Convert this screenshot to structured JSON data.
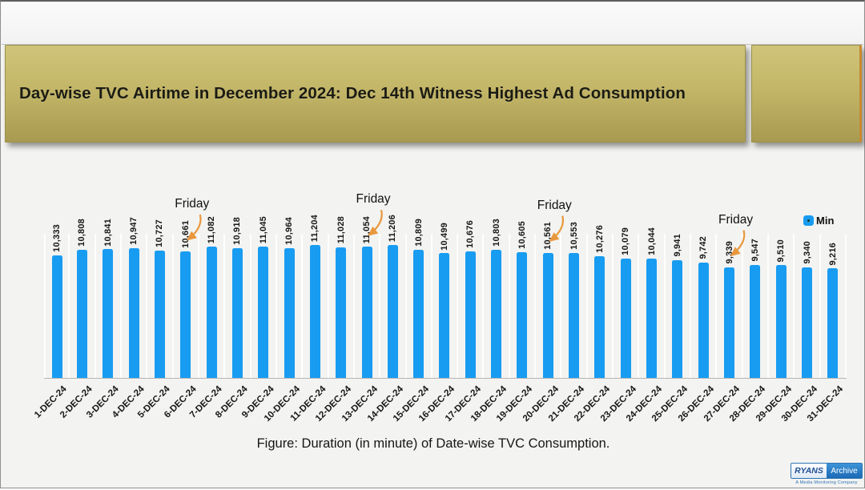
{
  "banner": {
    "title": "Day-wise TVC Airtime in December 2024: Dec 14th Witness Highest Ad Consumption",
    "banner_color": "#b9ac5e"
  },
  "legend": {
    "label": "Min",
    "marker_color": "#189CF1"
  },
  "caption": "Figure: Duration (in minute) of Date-wise TVC Consumption.",
  "annotations": [
    {
      "label": "Friday",
      "target_index": 5
    },
    {
      "label": "Friday",
      "target_index": 12
    },
    {
      "label": "Friday",
      "target_index": 19
    },
    {
      "label": "Friday",
      "target_index": 26
    }
  ],
  "logo": {
    "primary": "RYANS",
    "secondary": "Archive",
    "tagline": "A Media Monitoring Company",
    "brand_blue": "#1b6ab5"
  },
  "chart_data": {
    "type": "bar",
    "title": "Day-wise TVC Airtime in December 2024: Dec 14th Witness Highest Ad Consumption",
    "series_name": "Min",
    "categories": [
      "1-DEC-24",
      "2-DEC-24",
      "3-DEC-24",
      "4-DEC-24",
      "5-DEC-24",
      "6-DEC-24",
      "7-DEC-24",
      "8-DEC-24",
      "9-DEC-24",
      "10-DEC-24",
      "11-DEC-24",
      "12-DEC-24",
      "13-DEC-24",
      "14-DEC-24",
      "15-DEC-24",
      "16-DEC-24",
      "17-DEC-24",
      "18-DEC-24",
      "19-DEC-24",
      "20-DEC-24",
      "21-DEC-24",
      "22-DEC-24",
      "23-DEC-24",
      "24-DEC-24",
      "25-DEC-24",
      "26-DEC-24",
      "27-DEC-24",
      "28-DEC-24",
      "29-DEC-24",
      "30-DEC-24",
      "31-DEC-24"
    ],
    "values": [
      10333,
      10808,
      10841,
      10947,
      10727,
      10661,
      11082,
      10918,
      11045,
      10964,
      11204,
      11028,
      11054,
      11206,
      10809,
      10499,
      10676,
      10803,
      10605,
      10561,
      10553,
      10276,
      10079,
      10044,
      9941,
      9742,
      9339,
      9547,
      9510,
      9340,
      9216
    ],
    "xlabel": "",
    "ylabel": "",
    "ylim": [
      0,
      11206
    ],
    "grid": "vertical-white-separators",
    "data_labels": true,
    "legend_position": "top-right",
    "bar_color": "#189CF1",
    "annotation_color": "#E8973C"
  }
}
